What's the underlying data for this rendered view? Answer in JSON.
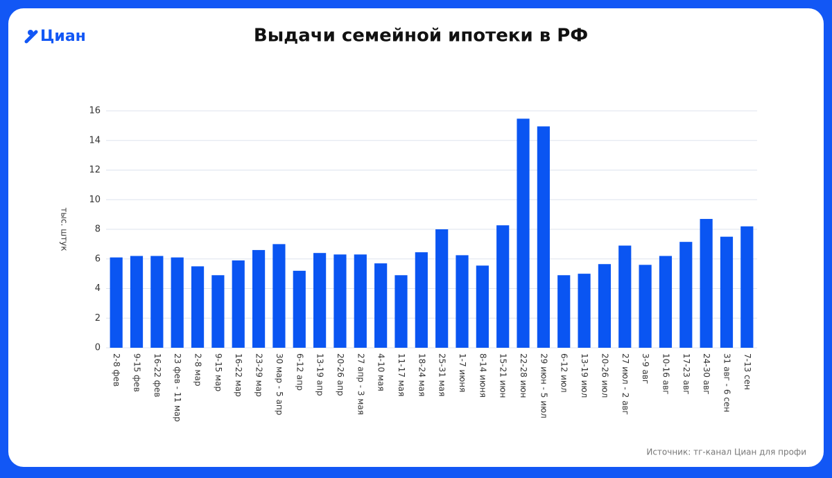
{
  "logo": "Циан",
  "chart_data": {
    "type": "bar",
    "title": "Выдачи семейной ипотеки в РФ",
    "y_label": "тыс. штук",
    "source": "Источник: тг-канал Циан для профи",
    "categories": [
      "2-8 фев",
      "9-15 фев",
      "16-22 фев",
      "23 фев - 11 мар",
      "2-8 мар",
      "9-15 мар",
      "16-22 мар",
      "23-29 мар",
      "30 мар - 5 апр",
      "6-12 апр",
      "13-19 апр",
      "20-26 апр",
      "27 апр - 3 мая",
      "4-10 мая",
      "11-17 мая",
      "18-24 мая",
      "25-31 мая",
      "1-7 июня",
      "8-14 июня",
      "15-21 июн",
      "22-28 июн",
      "29 июн - 5 июл",
      "6-12 июл",
      "13-19 июл",
      "20-26 июл",
      "27 июл - 2 авг",
      "3-9 авг",
      "10-16 авг",
      "17-23 авг",
      "24-30 авг",
      "31 авг - 6 сен",
      "7-13 сен"
    ],
    "values": [
      6.1,
      6.2,
      6.2,
      6.1,
      5.5,
      4.9,
      5.9,
      6.6,
      7.0,
      5.2,
      6.4,
      6.3,
      6.3,
      5.7,
      4.9,
      6.45,
      8.0,
      6.25,
      5.55,
      8.27,
      15.47,
      14.95,
      4.9,
      5.0,
      5.65,
      6.9,
      5.6,
      6.2,
      7.15,
      8.7,
      7.5,
      8.2
    ],
    "color": "#0a55f2",
    "ylim": [
      0,
      16
    ],
    "yticks": [
      0,
      2,
      4,
      6,
      8,
      10,
      12,
      14,
      16
    ],
    "grid": true
  }
}
